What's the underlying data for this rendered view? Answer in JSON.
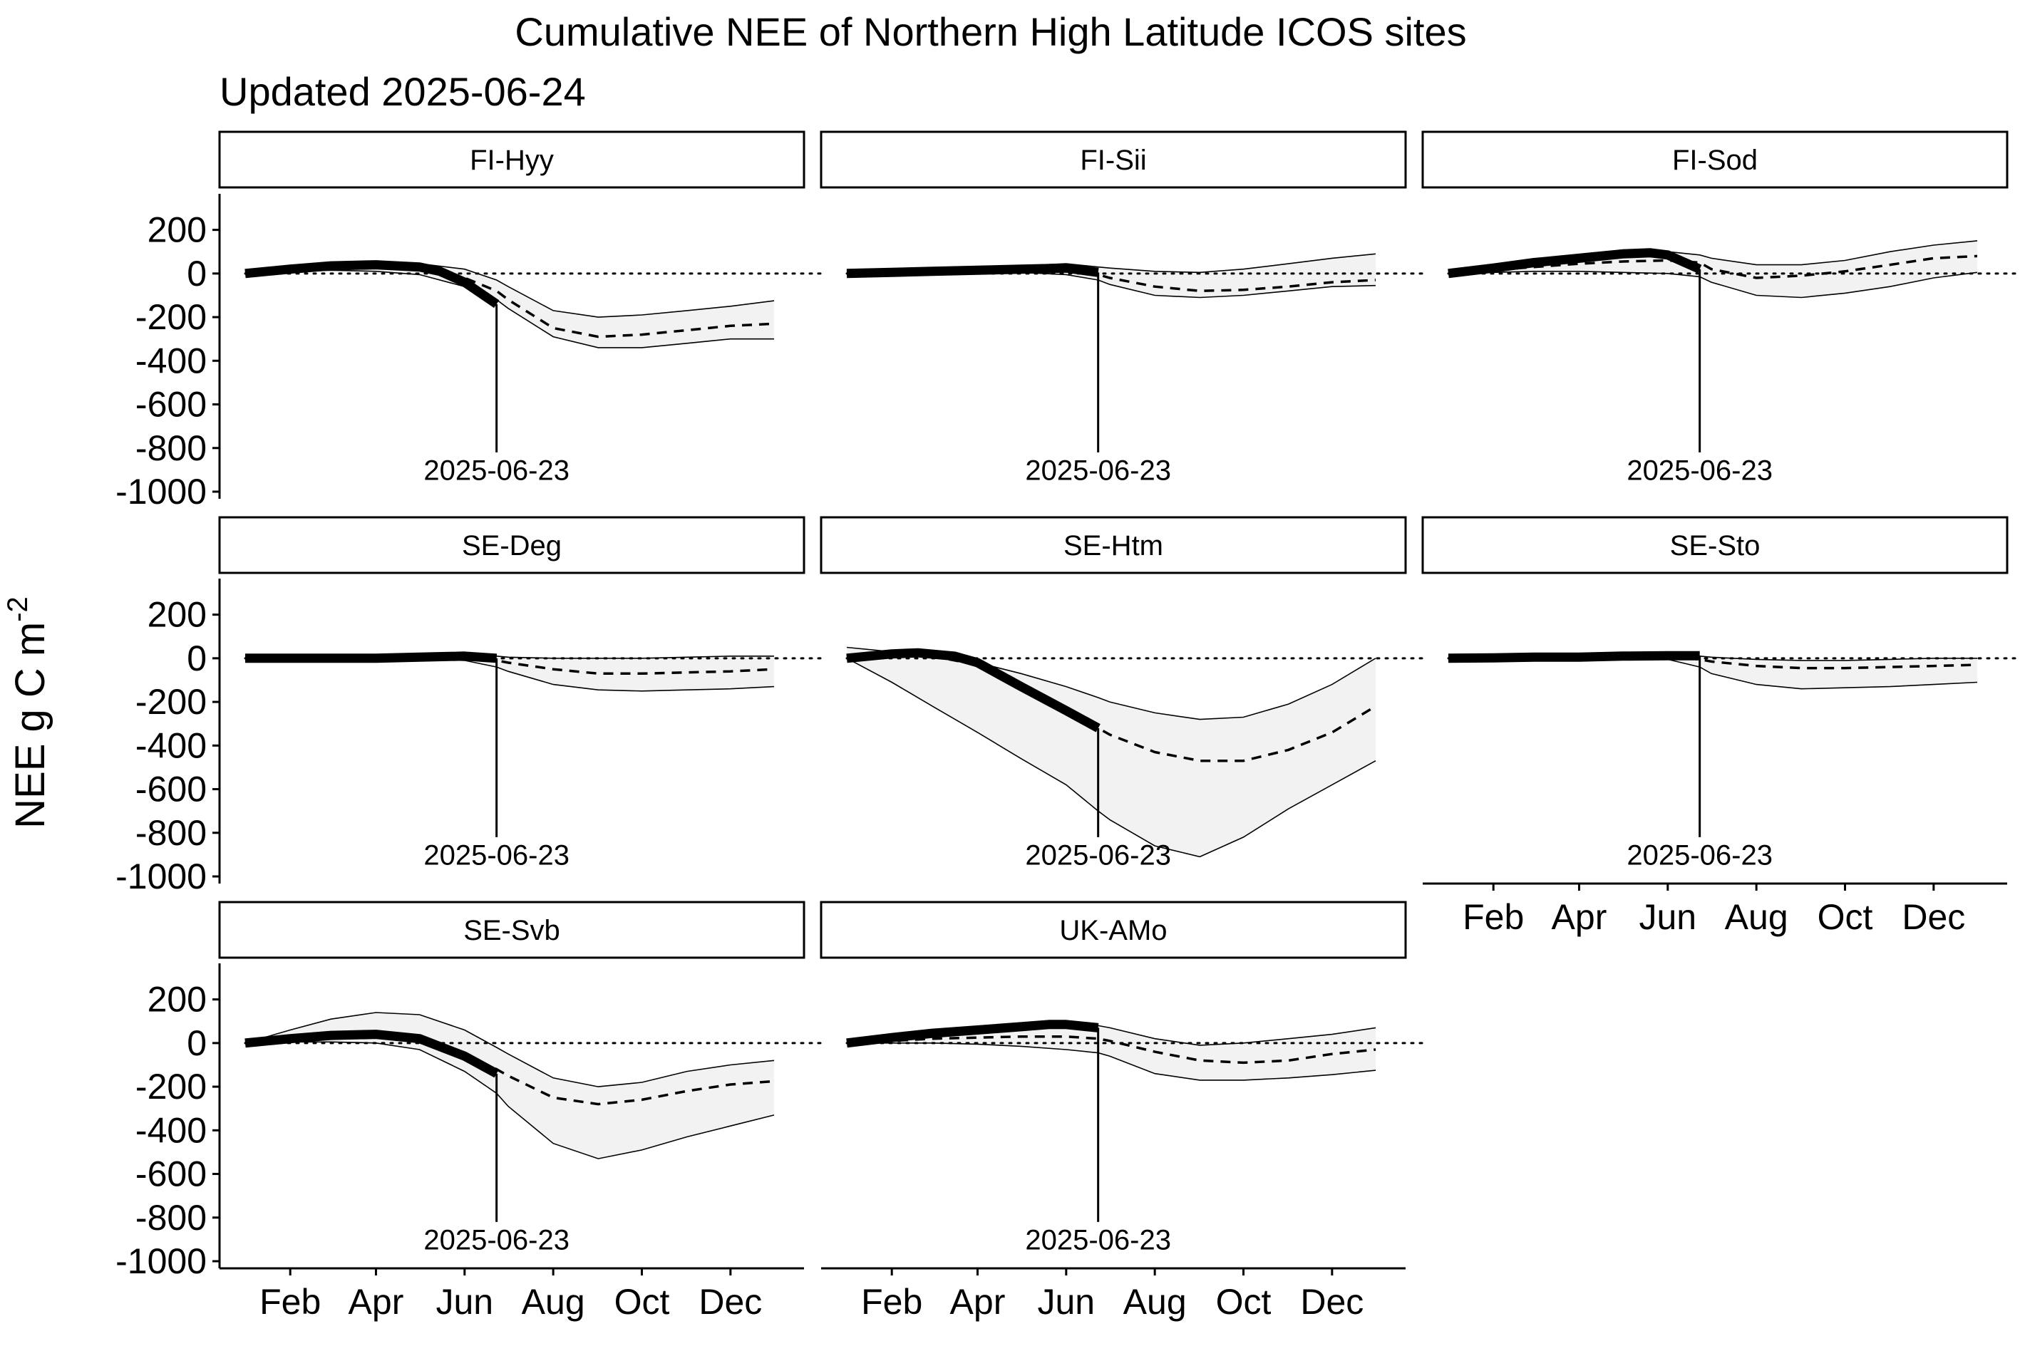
{
  "chart_data": {
    "type": "line",
    "title": "Cumulative NEE of Northern High Latitude ICOS sites",
    "subtitle": "Updated 2025-06-24",
    "ylabel": "NEE g C m",
    "ylabel_exponent": "-2",
    "ylim": [
      -1000,
      300
    ],
    "y_ticks": [
      200,
      0,
      -200,
      -400,
      -600,
      -800,
      -1000
    ],
    "y_tick_labels": [
      "200",
      "0",
      "-200",
      "-400",
      "-600",
      "-800",
      "-1000"
    ],
    "xlim": [
      1,
      365
    ],
    "x_tick_doy": [
      32,
      91,
      152,
      213,
      274,
      335
    ],
    "x_tick_labels": [
      "Feb",
      "Apr",
      "Jun",
      "Aug",
      "Oct",
      "Dec"
    ],
    "x_unit": "day of year",
    "x_sample_doy": [
      1,
      32,
      60,
      91,
      121,
      152,
      174,
      182,
      213,
      244,
      274,
      305,
      335,
      365
    ],
    "current_date": "2025-06-23",
    "current_doy": 174,
    "style": {
      "band_fill": "#f2f2f2",
      "line_color": "#000000",
      "zero_line": "dotted",
      "mean_line": "dashed",
      "current_year": "thick solid"
    },
    "panels": [
      {
        "site": "FI-Hyy",
        "current": [
          [
            1,
            0
          ],
          [
            32,
            20
          ],
          [
            60,
            35
          ],
          [
            91,
            40
          ],
          [
            121,
            30
          ],
          [
            135,
            10
          ],
          [
            152,
            -40
          ],
          [
            174,
            -140
          ]
        ],
        "mean": [
          0,
          15,
          30,
          35,
          25,
          -20,
          -80,
          -120,
          -250,
          -290,
          -280,
          -260,
          -240,
          -230
        ],
        "lower": [
          0,
          10,
          15,
          10,
          -5,
          -60,
          -120,
          -160,
          -290,
          -340,
          -340,
          -320,
          -300,
          -300
        ],
        "upper": [
          0,
          20,
          40,
          45,
          45,
          20,
          -30,
          -60,
          -170,
          -200,
          -190,
          -170,
          -150,
          -125
        ]
      },
      {
        "site": "FI-Sii",
        "current": [
          [
            1,
            0
          ],
          [
            32,
            5
          ],
          [
            60,
            10
          ],
          [
            91,
            15
          ],
          [
            121,
            20
          ],
          [
            152,
            25
          ],
          [
            174,
            5
          ]
        ],
        "mean": [
          0,
          5,
          10,
          15,
          18,
          15,
          -5,
          -20,
          -60,
          -80,
          -75,
          -60,
          -40,
          -30
        ],
        "lower": [
          0,
          3,
          6,
          8,
          5,
          -5,
          -30,
          -50,
          -100,
          -110,
          -100,
          -80,
          -60,
          -55
        ],
        "upper": [
          0,
          8,
          15,
          25,
          35,
          45,
          30,
          25,
          10,
          5,
          20,
          45,
          70,
          90
        ]
      },
      {
        "site": "FI-Sod",
        "current": [
          [
            1,
            0
          ],
          [
            32,
            25
          ],
          [
            60,
            50
          ],
          [
            91,
            70
          ],
          [
            121,
            90
          ],
          [
            140,
            95
          ],
          [
            152,
            85
          ],
          [
            174,
            20
          ]
        ],
        "mean": [
          0,
          15,
          30,
          45,
          55,
          60,
          50,
          20,
          -20,
          -10,
          10,
          40,
          70,
          80
        ],
        "lower": [
          0,
          5,
          10,
          10,
          5,
          0,
          -15,
          -40,
          -100,
          -110,
          -90,
          -60,
          -20,
          5
        ],
        "upper": [
          0,
          25,
          50,
          70,
          90,
          100,
          85,
          70,
          40,
          40,
          60,
          100,
          130,
          150
        ]
      },
      {
        "site": "SE-Deg",
        "current": [
          [
            1,
            0
          ],
          [
            32,
            0
          ],
          [
            60,
            0
          ],
          [
            91,
            0
          ],
          [
            121,
            5
          ],
          [
            152,
            10
          ],
          [
            174,
            0
          ]
        ],
        "mean": [
          0,
          0,
          0,
          0,
          5,
          5,
          -10,
          -20,
          -50,
          -70,
          -70,
          -65,
          -60,
          -50
        ],
        "lower": [
          0,
          -3,
          -5,
          -5,
          -3,
          -10,
          -40,
          -60,
          -120,
          -145,
          -150,
          -145,
          -140,
          -130
        ],
        "upper": [
          0,
          3,
          5,
          5,
          10,
          15,
          10,
          5,
          0,
          0,
          0,
          5,
          10,
          10
        ]
      },
      {
        "site": "SE-Htm",
        "current": [
          [
            1,
            0
          ],
          [
            32,
            20
          ],
          [
            50,
            25
          ],
          [
            75,
            10
          ],
          [
            91,
            -20
          ],
          [
            121,
            -130
          ],
          [
            152,
            -240
          ],
          [
            174,
            -320
          ]
        ],
        "mean": [
          0,
          20,
          10,
          -30,
          -130,
          -230,
          -320,
          -350,
          -430,
          -470,
          -470,
          -420,
          -340,
          -220
        ],
        "lower": [
          0,
          -110,
          -220,
          -340,
          -460,
          -580,
          -700,
          -740,
          -860,
          -910,
          -820,
          -690,
          -580,
          -470
        ],
        "upper": [
          50,
          30,
          10,
          -20,
          -70,
          -130,
          -180,
          -200,
          -250,
          -280,
          -270,
          -210,
          -120,
          0
        ]
      },
      {
        "site": "SE-Sto",
        "current": [
          [
            1,
            0
          ],
          [
            32,
            2
          ],
          [
            60,
            5
          ],
          [
            91,
            5
          ],
          [
            121,
            10
          ],
          [
            152,
            12
          ],
          [
            174,
            12
          ]
        ],
        "mean": [
          0,
          2,
          4,
          5,
          8,
          8,
          -5,
          -15,
          -35,
          -45,
          -45,
          -40,
          -35,
          -30
        ],
        "lower": [
          0,
          -2,
          -3,
          -3,
          0,
          -5,
          -40,
          -70,
          -120,
          -140,
          -135,
          -130,
          -120,
          -110
        ],
        "upper": [
          0,
          3,
          6,
          8,
          12,
          15,
          10,
          5,
          -5,
          -10,
          -10,
          -5,
          0,
          0
        ]
      },
      {
        "site": "SE-Svb",
        "current": [
          [
            1,
            0
          ],
          [
            32,
            20
          ],
          [
            60,
            35
          ],
          [
            91,
            40
          ],
          [
            121,
            20
          ],
          [
            152,
            -60
          ],
          [
            174,
            -140
          ]
        ],
        "mean": [
          0,
          20,
          35,
          40,
          25,
          -50,
          -120,
          -150,
          -250,
          -280,
          -260,
          -220,
          -190,
          -175
        ],
        "lower": [
          0,
          5,
          5,
          0,
          -30,
          -130,
          -230,
          -290,
          -460,
          -530,
          -490,
          -430,
          -380,
          -330
        ],
        "upper": [
          0,
          60,
          110,
          140,
          130,
          60,
          -20,
          -50,
          -160,
          -200,
          -180,
          -130,
          -100,
          -80
        ]
      },
      {
        "site": "UK-AMo",
        "current": [
          [
            1,
            0
          ],
          [
            32,
            25
          ],
          [
            60,
            45
          ],
          [
            91,
            60
          ],
          [
            121,
            75
          ],
          [
            140,
            85
          ],
          [
            152,
            85
          ],
          [
            174,
            70
          ]
        ],
        "mean": [
          0,
          10,
          20,
          25,
          30,
          30,
          20,
          10,
          -40,
          -80,
          -90,
          -80,
          -50,
          -30
        ],
        "lower": [
          0,
          0,
          0,
          -5,
          -15,
          -30,
          -45,
          -60,
          -140,
          -170,
          -170,
          -160,
          -145,
          -125
        ],
        "upper": [
          0,
          20,
          45,
          70,
          90,
          95,
          80,
          70,
          20,
          -10,
          0,
          20,
          40,
          70
        ]
      }
    ]
  }
}
